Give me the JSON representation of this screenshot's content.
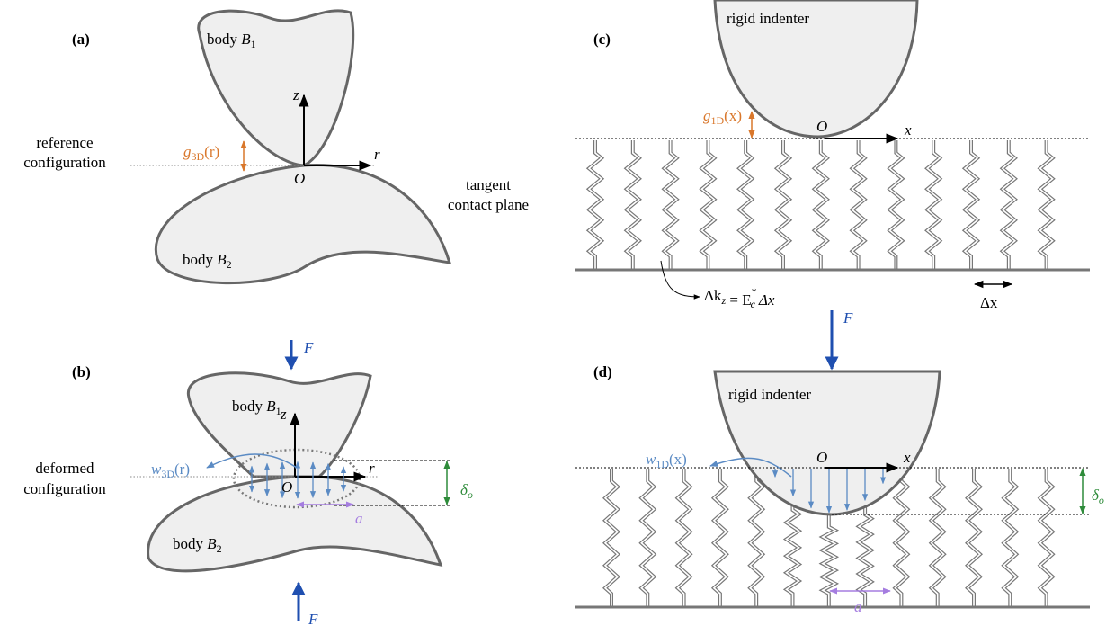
{
  "a": {
    "label": "(a)",
    "body_top": [
      "body ",
      "B",
      "1"
    ],
    "z": "z",
    "r": "r",
    "origin": "O",
    "gap": [
      "g",
      "3D",
      "(r)"
    ],
    "config": [
      "reference",
      "configuration"
    ],
    "plane": [
      "tangent",
      "contact plane"
    ],
    "body_bottom": [
      "body ",
      "B",
      "2"
    ]
  },
  "b": {
    "label": "(b)",
    "force_top": "F",
    "body_top": [
      "body ",
      "B",
      "1"
    ],
    "z": "z",
    "r": "r",
    "origin": "O",
    "displacement": [
      "w",
      "3D",
      "(r)"
    ],
    "config": [
      "deformed",
      "configuration"
    ],
    "approach": [
      "δ",
      "o"
    ],
    "radius": "a",
    "body_bottom": [
      "body ",
      "B",
      "2"
    ],
    "force_bottom": "F"
  },
  "c": {
    "label": "(c)",
    "indenter": "rigid indenter",
    "gap": [
      "g",
      "1D",
      "(x)"
    ],
    "origin": "O",
    "x": "x",
    "stiffness": [
      "Δk",
      "z",
      " = E",
      "*",
      "c",
      "Δx"
    ],
    "spacing": "Δx"
  },
  "d": {
    "label": "(d)",
    "force": "F",
    "indenter": "rigid indenter",
    "displacement": [
      "w",
      "1D",
      "(x)"
    ],
    "origin": "O",
    "x": "x",
    "approach": [
      "δ",
      "o"
    ],
    "radius": "a"
  }
}
